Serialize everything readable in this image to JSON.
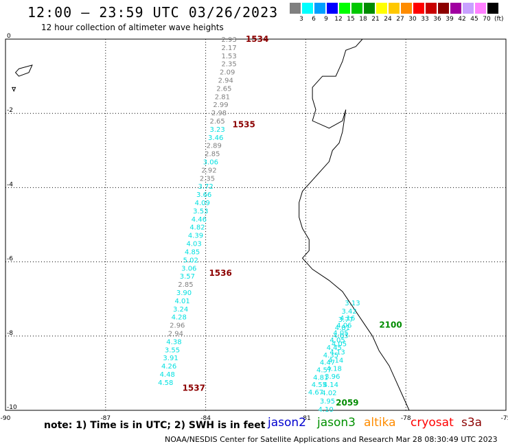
{
  "header": {
    "title": "12:00 — 23:59 UTC 03/26/2023",
    "subtitle": "12 hour collection of altimeter wave heights"
  },
  "legend": {
    "colors": [
      "#808080",
      "#00ffff",
      "#00a0ff",
      "#0000ff",
      "#00ff00",
      "#00c800",
      "#008c00",
      "#ffff00",
      "#ffc800",
      "#ff8c00",
      "#ff0000",
      "#c80000",
      "#8c0000",
      "#a000a0",
      "#c8a0ff",
      "#ff80ff",
      "#000000"
    ],
    "labels": [
      "3",
      "6",
      "9",
      "12",
      "15",
      "18",
      "21",
      "24",
      "27",
      "30",
      "33",
      "36",
      "39",
      "42",
      "45",
      "70"
    ],
    "unit": "(ft)"
  },
  "chart_data": {
    "type": "scatter",
    "title": "12:00 — 23:59 UTC 03/26/2023",
    "subtitle": "12 hour collection of altimeter wave heights",
    "xlim": [
      -90,
      -75
    ],
    "ylim": [
      -10,
      0
    ],
    "x_ticks": [
      "-90",
      "-87",
      "-84",
      "-81",
      "-78",
      "-75"
    ],
    "y_ticks": [
      "0",
      "-2",
      "-4",
      "-6",
      "-8",
      "-10"
    ],
    "grid": true,
    "units": "ft",
    "pass_labels": [
      {
        "text": "1534",
        "lon": -82.8,
        "lat": 0.0,
        "color": "#8c0000"
      },
      {
        "text": "1535",
        "lon": -83.2,
        "lat": -2.3,
        "color": "#8c0000"
      },
      {
        "text": "1536",
        "lon": -83.9,
        "lat": -6.3,
        "color": "#8c0000"
      },
      {
        "text": "1537",
        "lon": -84.7,
        "lat": -9.4,
        "color": "#8c0000"
      },
      {
        "text": "2100",
        "lon": -78.8,
        "lat": -7.7,
        "color": "#008c00"
      },
      {
        "text": "2059",
        "lon": -80.1,
        "lat": -9.8,
        "color": "#008c00"
      }
    ],
    "series": [
      {
        "color": "#808080",
        "points": [
          {
            "lon": -83.3,
            "lat": 0.0,
            "swh": "2.93"
          },
          {
            "lon": -83.3,
            "lat": -0.22,
            "swh": "2.17"
          },
          {
            "lon": -83.3,
            "lat": -0.44,
            "swh": "1.53"
          },
          {
            "lon": -83.3,
            "lat": -0.66,
            "swh": "2.35"
          },
          {
            "lon": -83.35,
            "lat": -0.88,
            "swh": "2.09"
          },
          {
            "lon": -83.4,
            "lat": -1.1,
            "swh": "2.94"
          },
          {
            "lon": -83.45,
            "lat": -1.32,
            "swh": "2.65"
          },
          {
            "lon": -83.5,
            "lat": -1.54,
            "swh": "2.81"
          },
          {
            "lon": -83.55,
            "lat": -1.76,
            "swh": "2.99"
          },
          {
            "lon": -83.6,
            "lat": -1.98,
            "swh": "2.98"
          },
          {
            "lon": -83.65,
            "lat": -2.2,
            "swh": "2.65"
          }
        ]
      },
      {
        "color": "#00e0e0",
        "points": [
          {
            "lon": -83.65,
            "lat": -2.42,
            "swh": "3.23"
          },
          {
            "lon": -83.7,
            "lat": -2.64,
            "swh": "3.46"
          }
        ]
      },
      {
        "color": "#808080",
        "points": [
          {
            "lon": -83.75,
            "lat": -2.86,
            "swh": "2.89"
          },
          {
            "lon": -83.8,
            "lat": -3.08,
            "swh": "2.85"
          }
        ]
      },
      {
        "color": "#00e0e0",
        "points": [
          {
            "lon": -83.85,
            "lat": -3.3,
            "swh": "3.06"
          }
        ]
      },
      {
        "color": "#808080",
        "points": [
          {
            "lon": -83.9,
            "lat": -3.52,
            "swh": "2.92"
          },
          {
            "lon": -83.95,
            "lat": -3.74,
            "swh": "2.35"
          }
        ]
      },
      {
        "color": "#00e0e0",
        "points": [
          {
            "lon": -84.0,
            "lat": -3.96,
            "swh": "3.72"
          },
          {
            "lon": -84.05,
            "lat": -4.18,
            "swh": "3.66"
          },
          {
            "lon": -84.1,
            "lat": -4.4,
            "swh": "4.09"
          },
          {
            "lon": -84.15,
            "lat": -4.62,
            "swh": "3.53"
          },
          {
            "lon": -84.2,
            "lat": -4.84,
            "swh": "4.46"
          },
          {
            "lon": -84.25,
            "lat": -5.06,
            "swh": "4.82"
          },
          {
            "lon": -84.3,
            "lat": -5.28,
            "swh": "4.39"
          },
          {
            "lon": -84.35,
            "lat": -5.5,
            "swh": "4.03"
          },
          {
            "lon": -84.4,
            "lat": -5.72,
            "swh": "4.85"
          },
          {
            "lon": -84.45,
            "lat": -5.94,
            "swh": "5.02"
          },
          {
            "lon": -84.5,
            "lat": -6.16,
            "swh": "3.06"
          },
          {
            "lon": -84.55,
            "lat": -6.38,
            "swh": "3.57"
          }
        ]
      },
      {
        "color": "#808080",
        "points": [
          {
            "lon": -84.6,
            "lat": -6.6,
            "swh": "2.85"
          }
        ]
      },
      {
        "color": "#00e0e0",
        "points": [
          {
            "lon": -84.65,
            "lat": -6.82,
            "swh": "3.90"
          },
          {
            "lon": -84.7,
            "lat": -7.04,
            "swh": "4.01"
          },
          {
            "lon": -84.75,
            "lat": -7.26,
            "swh": "3.24"
          },
          {
            "lon": -84.8,
            "lat": -7.48,
            "swh": "4.28"
          }
        ]
      },
      {
        "color": "#808080",
        "points": [
          {
            "lon": -84.85,
            "lat": -7.7,
            "swh": "2.96"
          },
          {
            "lon": -84.9,
            "lat": -7.92,
            "swh": "2.94"
          }
        ]
      },
      {
        "color": "#00e0e0",
        "points": [
          {
            "lon": -84.95,
            "lat": -8.14,
            "swh": "4.38"
          },
          {
            "lon": -85.0,
            "lat": -8.36,
            "swh": "3.55"
          },
          {
            "lon": -85.05,
            "lat": -8.58,
            "swh": "3.91"
          },
          {
            "lon": -85.1,
            "lat": -8.8,
            "swh": "4.26"
          },
          {
            "lon": -85.15,
            "lat": -9.02,
            "swh": "4.48"
          },
          {
            "lon": -85.2,
            "lat": -9.24,
            "swh": "4.58"
          }
        ]
      },
      {
        "color": "#00e0e0",
        "points": [
          {
            "lon": -79.6,
            "lat": -7.1,
            "swh": "3.13"
          },
          {
            "lon": -79.7,
            "lat": -7.32,
            "swh": "3.42"
          },
          {
            "lon": -79.8,
            "lat": -7.54,
            "swh": "3.77"
          },
          {
            "lon": -79.9,
            "lat": -7.76,
            "swh": "4.81"
          },
          {
            "lon": -79.95,
            "lat": -7.98,
            "swh": "4.03"
          },
          {
            "lon": -80.0,
            "lat": -8.2,
            "swh": "4.05"
          },
          {
            "lon": -80.05,
            "lat": -8.42,
            "swh": "4.13"
          },
          {
            "lon": -80.1,
            "lat": -8.64,
            "swh": "4.14"
          },
          {
            "lon": -80.15,
            "lat": -8.86,
            "swh": "4.18"
          },
          {
            "lon": -80.2,
            "lat": -9.08,
            "swh": "3.96"
          },
          {
            "lon": -80.25,
            "lat": -9.3,
            "swh": "4.14"
          },
          {
            "lon": -80.3,
            "lat": -9.52,
            "swh": "4.02"
          },
          {
            "lon": -80.35,
            "lat": -9.74,
            "swh": "3.95"
          },
          {
            "lon": -80.4,
            "lat": -9.96,
            "swh": "4.10"
          }
        ]
      },
      {
        "color": "#00e0e0",
        "points": [
          {
            "lon": -79.75,
            "lat": -7.5,
            "swh": "4.16"
          },
          {
            "lon": -79.85,
            "lat": -7.7,
            "swh": "4.06"
          },
          {
            "lon": -79.95,
            "lat": -7.9,
            "swh": "4.05"
          },
          {
            "lon": -80.05,
            "lat": -8.1,
            "swh": "4.05"
          },
          {
            "lon": -80.15,
            "lat": -8.3,
            "swh": "4.45"
          },
          {
            "lon": -80.25,
            "lat": -8.5,
            "swh": "4.35"
          },
          {
            "lon": -80.35,
            "lat": -8.7,
            "swh": "4.47"
          },
          {
            "lon": -80.45,
            "lat": -8.9,
            "swh": "4.57"
          },
          {
            "lon": -80.55,
            "lat": -9.1,
            "swh": "4.81"
          },
          {
            "lon": -80.6,
            "lat": -9.3,
            "swh": "4.55"
          },
          {
            "lon": -80.7,
            "lat": -9.5,
            "swh": "4.67"
          }
        ]
      }
    ],
    "coastline": [
      [
        -79.3,
        0.0
      ],
      [
        -79.5,
        -0.2
      ],
      [
        -79.8,
        -0.3
      ],
      [
        -79.9,
        -0.6
      ],
      [
        -80.0,
        -0.8
      ],
      [
        -80.1,
        -1.0
      ],
      [
        -80.5,
        -1.0
      ],
      [
        -80.8,
        -1.3
      ],
      [
        -80.8,
        -1.6
      ],
      [
        -80.7,
        -1.9
      ],
      [
        -80.8,
        -2.2
      ],
      [
        -80.3,
        -2.4
      ],
      [
        -79.9,
        -2.2
      ],
      [
        -79.8,
        -1.9
      ],
      [
        -79.9,
        -2.5
      ],
      [
        -80.0,
        -2.8
      ],
      [
        -80.2,
        -3.0
      ],
      [
        -80.3,
        -3.3
      ],
      [
        -80.5,
        -3.5
      ],
      [
        -80.8,
        -3.8
      ],
      [
        -81.1,
        -4.1
      ],
      [
        -81.2,
        -4.4
      ],
      [
        -81.2,
        -4.8
      ],
      [
        -81.1,
        -5.1
      ],
      [
        -80.9,
        -5.4
      ],
      [
        -80.9,
        -5.7
      ],
      [
        -81.1,
        -5.9
      ],
      [
        -80.8,
        -6.2
      ],
      [
        -80.3,
        -6.5
      ],
      [
        -79.9,
        -6.8
      ],
      [
        -79.6,
        -7.2
      ],
      [
        -79.3,
        -7.6
      ],
      [
        -79.0,
        -8.0
      ],
      [
        -78.8,
        -8.4
      ],
      [
        -78.5,
        -8.8
      ],
      [
        -78.3,
        -9.2
      ],
      [
        -78.1,
        -9.6
      ],
      [
        -77.9,
        -10.0
      ]
    ],
    "island": [
      [
        -89.6,
        -0.8
      ],
      [
        -89.2,
        -0.7
      ],
      [
        -89.3,
        -0.9
      ],
      [
        -89.6,
        -1.0
      ],
      [
        -89.7,
        -0.9
      ]
    ],
    "islet": [
      [
        -89.8,
        -1.3
      ],
      [
        -89.7,
        -1.3
      ],
      [
        -89.75,
        -1.4
      ]
    ]
  },
  "footer": {
    "note": "note:  1) Time is in UTC; 2) SWH is in feet",
    "satellites": [
      {
        "name": "jason2",
        "color": "#0000d0"
      },
      {
        "name": "jason3",
        "color": "#009000"
      },
      {
        "name": "altika",
        "color": "#ff8c00"
      },
      {
        "name": "cryosat",
        "color": "#ff0000"
      },
      {
        "name": "s3a",
        "color": "#8c0000"
      }
    ],
    "credit": "NOAA/NESDIS Center for Satellite Applications and Research    Mar 28 08:30:49 UTC 2023"
  }
}
